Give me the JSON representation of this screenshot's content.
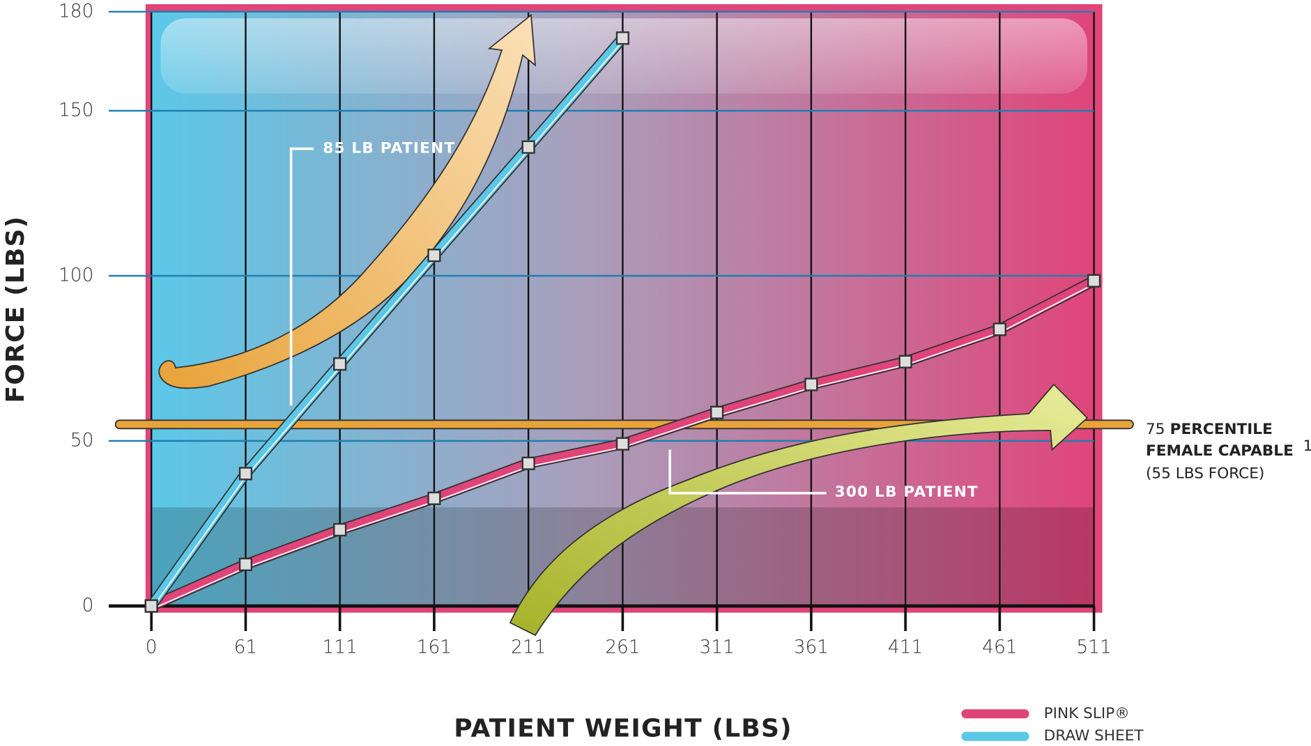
{
  "chart_data": {
    "type": "line",
    "x_label": "PATIENT WEIGHT (LBS)",
    "y_label": "FORCE (LBS)",
    "categories": [
      "0",
      "61",
      "111",
      "161",
      "211",
      "261",
      "311",
      "361",
      "411",
      "461",
      "511"
    ],
    "series": [
      {
        "name": "PINK SLIP®",
        "color": "#e0457a",
        "values": [
          0,
          12.6,
          23.1,
          32.6,
          43.2,
          49.1,
          58.6,
          67.1,
          74,
          83.8,
          98.5
        ]
      },
      {
        "name": "DRAW SHEET",
        "color": "#5bc8e8",
        "values": [
          0,
          40.1,
          73.3,
          106.2,
          139,
          172,
          null,
          null,
          null,
          null,
          null
        ]
      }
    ],
    "ylim": [
      0,
      180
    ],
    "yticks": [
      0,
      50,
      100,
      150,
      180
    ],
    "threshold": {
      "value": 55,
      "color": "#e8a33a",
      "number": "75",
      "label": [
        "PERCENTILE",
        "FEMALE CAPABLE"
      ],
      "footnote": "1",
      "note": "(55 LBS FORCE)"
    },
    "annotations": [
      "85 LB PATIENT",
      "300 LB PATIENT"
    ]
  }
}
